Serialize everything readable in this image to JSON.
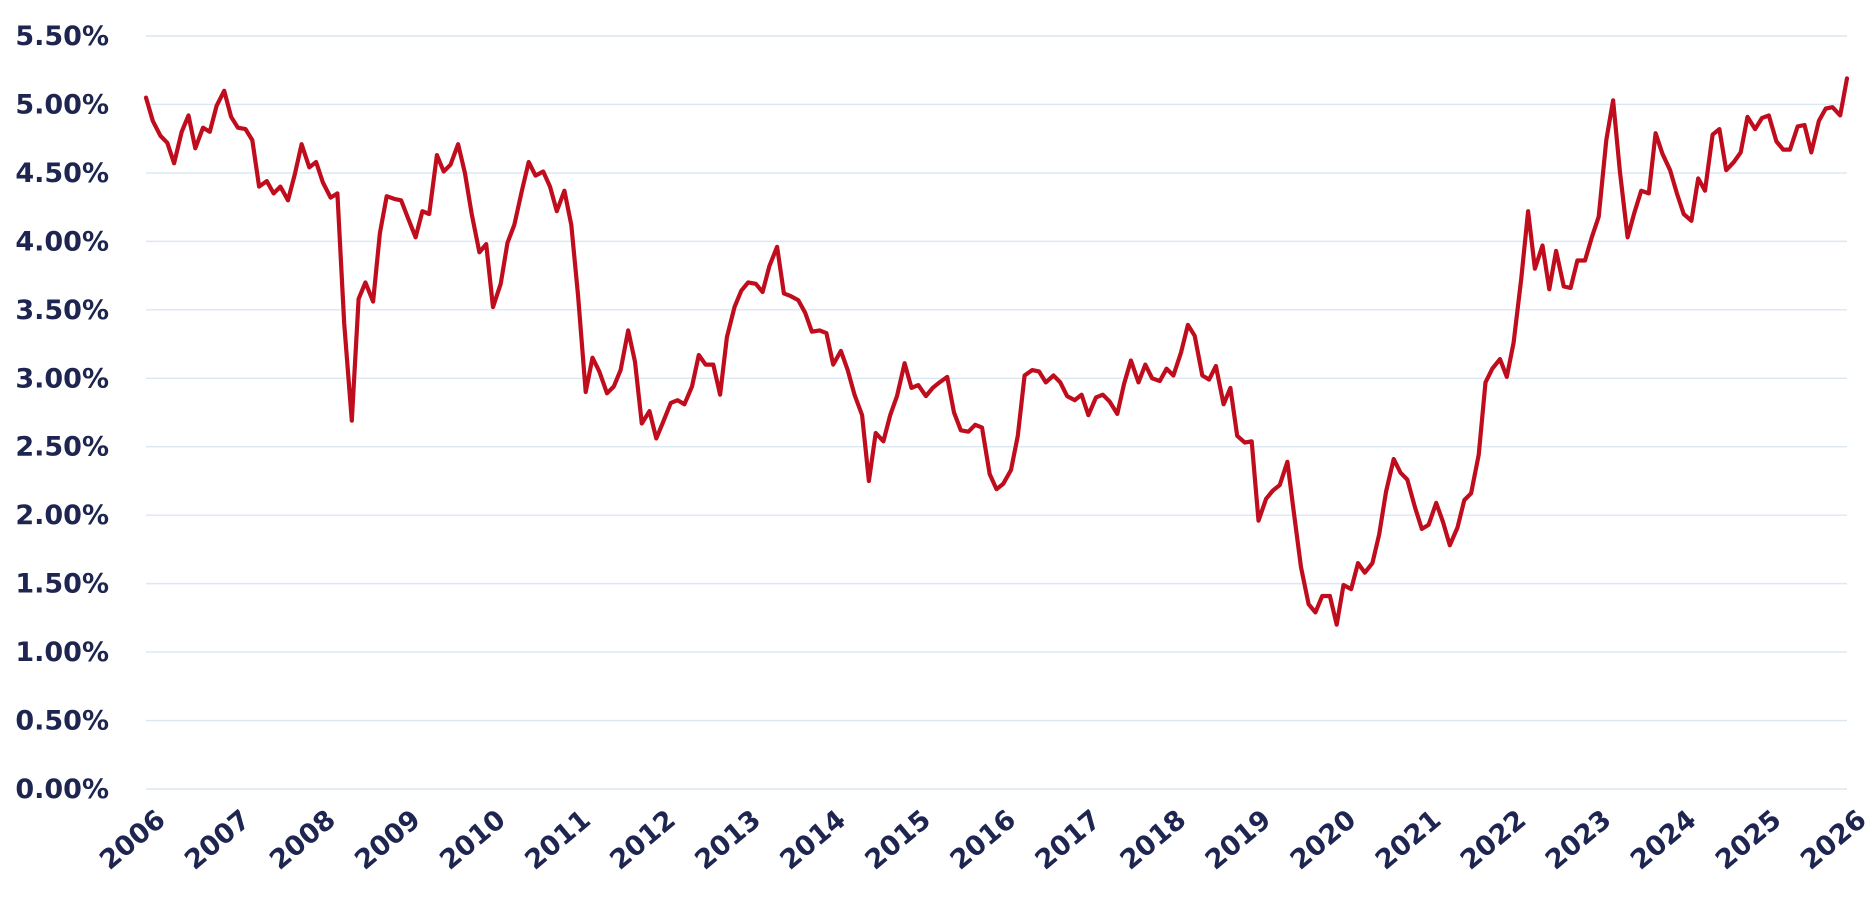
{
  "chart_data": {
    "type": "line",
    "title": "",
    "xlabel": "",
    "ylabel": "",
    "xlim": [
      2006,
      2026
    ],
    "ylim": [
      0,
      5.5
    ],
    "x_ticks": [
      2006,
      2007,
      2008,
      2009,
      2010,
      2011,
      2012,
      2013,
      2014,
      2015,
      2016,
      2017,
      2018,
      2019,
      2020,
      2021,
      2022,
      2023,
      2024,
      2025,
      2026
    ],
    "x_tick_labels": [
      "2006",
      "2007",
      "2008",
      "2009",
      "2010",
      "2011",
      "2012",
      "2013",
      "2014",
      "2015",
      "2016",
      "2017",
      "2018",
      "2019",
      "2020",
      "2021",
      "2022",
      "2023",
      "2024",
      "2025",
      "2026"
    ],
    "y_ticks": [
      0,
      0.5,
      1,
      1.5,
      2,
      2.5,
      3,
      3.5,
      4,
      4.5,
      5,
      5.5
    ],
    "y_tick_labels": [
      "0.00%",
      "0.50%",
      "1.00%",
      "1.50%",
      "2.00%",
      "2.50%",
      "3.00%",
      "3.50%",
      "4.00%",
      "4.50%",
      "5.00%",
      "5.50%"
    ],
    "grid": "horizontal",
    "legend": "none",
    "series": [
      {
        "color": "#c00d1e",
        "points": [
          [
            2006.0,
            5.05
          ],
          [
            2006.08,
            4.88
          ],
          [
            2006.17,
            4.77
          ],
          [
            2006.25,
            4.72
          ],
          [
            2006.33,
            4.57
          ],
          [
            2006.42,
            4.8
          ],
          [
            2006.5,
            4.92
          ],
          [
            2006.58,
            4.68
          ],
          [
            2006.67,
            4.83
          ],
          [
            2006.75,
            4.8
          ],
          [
            2006.83,
            4.99
          ],
          [
            2006.92,
            5.1
          ],
          [
            2007.0,
            4.91
          ],
          [
            2007.08,
            4.83
          ],
          [
            2007.17,
            4.82
          ],
          [
            2007.25,
            4.74
          ],
          [
            2007.33,
            4.4
          ],
          [
            2007.42,
            4.44
          ],
          [
            2007.5,
            4.35
          ],
          [
            2007.58,
            4.4
          ],
          [
            2007.67,
            4.3
          ],
          [
            2007.75,
            4.49
          ],
          [
            2007.83,
            4.71
          ],
          [
            2007.92,
            4.54
          ],
          [
            2008.0,
            4.58
          ],
          [
            2008.08,
            4.43
          ],
          [
            2008.17,
            4.32
          ],
          [
            2008.25,
            4.35
          ],
          [
            2008.33,
            3.4
          ],
          [
            2008.42,
            2.69
          ],
          [
            2008.5,
            3.58
          ],
          [
            2008.58,
            3.7
          ],
          [
            2008.67,
            3.56
          ],
          [
            2008.75,
            4.06
          ],
          [
            2008.83,
            4.33
          ],
          [
            2008.92,
            4.31
          ],
          [
            2009.0,
            4.3
          ],
          [
            2009.08,
            4.17
          ],
          [
            2009.17,
            4.03
          ],
          [
            2009.25,
            4.22
          ],
          [
            2009.33,
            4.2
          ],
          [
            2009.42,
            4.63
          ],
          [
            2009.5,
            4.51
          ],
          [
            2009.58,
            4.56
          ],
          [
            2009.67,
            4.71
          ],
          [
            2009.75,
            4.5
          ],
          [
            2009.83,
            4.2
          ],
          [
            2009.92,
            3.92
          ],
          [
            2010.0,
            3.98
          ],
          [
            2010.08,
            3.52
          ],
          [
            2010.17,
            3.69
          ],
          [
            2010.25,
            3.99
          ],
          [
            2010.33,
            4.12
          ],
          [
            2010.42,
            4.37
          ],
          [
            2010.5,
            4.58
          ],
          [
            2010.58,
            4.48
          ],
          [
            2010.67,
            4.51
          ],
          [
            2010.75,
            4.4
          ],
          [
            2010.83,
            4.22
          ],
          [
            2010.92,
            4.37
          ],
          [
            2011.0,
            4.12
          ],
          [
            2011.08,
            3.6
          ],
          [
            2011.17,
            2.9
          ],
          [
            2011.25,
            3.15
          ],
          [
            2011.33,
            3.05
          ],
          [
            2011.42,
            2.89
          ],
          [
            2011.5,
            2.94
          ],
          [
            2011.58,
            3.06
          ],
          [
            2011.67,
            3.35
          ],
          [
            2011.75,
            3.12
          ],
          [
            2011.83,
            2.67
          ],
          [
            2011.92,
            2.76
          ],
          [
            2012.0,
            2.56
          ],
          [
            2012.08,
            2.68
          ],
          [
            2012.17,
            2.82
          ],
          [
            2012.25,
            2.84
          ],
          [
            2012.33,
            2.81
          ],
          [
            2012.42,
            2.94
          ],
          [
            2012.5,
            3.17
          ],
          [
            2012.58,
            3.1
          ],
          [
            2012.67,
            3.1
          ],
          [
            2012.75,
            2.88
          ],
          [
            2012.83,
            3.3
          ],
          [
            2012.92,
            3.52
          ],
          [
            2013.0,
            3.64
          ],
          [
            2013.08,
            3.7
          ],
          [
            2013.17,
            3.69
          ],
          [
            2013.25,
            3.63
          ],
          [
            2013.33,
            3.82
          ],
          [
            2013.42,
            3.96
          ],
          [
            2013.5,
            3.62
          ],
          [
            2013.58,
            3.6
          ],
          [
            2013.67,
            3.57
          ],
          [
            2013.75,
            3.48
          ],
          [
            2013.83,
            3.34
          ],
          [
            2013.92,
            3.35
          ],
          [
            2014.0,
            3.33
          ],
          [
            2014.08,
            3.1
          ],
          [
            2014.17,
            3.2
          ],
          [
            2014.25,
            3.06
          ],
          [
            2014.33,
            2.88
          ],
          [
            2014.42,
            2.73
          ],
          [
            2014.5,
            2.25
          ],
          [
            2014.58,
            2.6
          ],
          [
            2014.67,
            2.54
          ],
          [
            2014.75,
            2.73
          ],
          [
            2014.83,
            2.87
          ],
          [
            2014.92,
            3.11
          ],
          [
            2015.0,
            2.93
          ],
          [
            2015.08,
            2.95
          ],
          [
            2015.17,
            2.87
          ],
          [
            2015.25,
            2.93
          ],
          [
            2015.33,
            2.97
          ],
          [
            2015.42,
            3.01
          ],
          [
            2015.5,
            2.75
          ],
          [
            2015.58,
            2.62
          ],
          [
            2015.67,
            2.61
          ],
          [
            2015.75,
            2.66
          ],
          [
            2015.83,
            2.64
          ],
          [
            2015.92,
            2.3
          ],
          [
            2016.0,
            2.19
          ],
          [
            2016.08,
            2.23
          ],
          [
            2016.17,
            2.33
          ],
          [
            2016.25,
            2.58
          ],
          [
            2016.33,
            3.02
          ],
          [
            2016.42,
            3.06
          ],
          [
            2016.5,
            3.05
          ],
          [
            2016.58,
            2.97
          ],
          [
            2016.67,
            3.02
          ],
          [
            2016.75,
            2.97
          ],
          [
            2016.83,
            2.87
          ],
          [
            2016.92,
            2.84
          ],
          [
            2017.0,
            2.88
          ],
          [
            2017.08,
            2.73
          ],
          [
            2017.17,
            2.86
          ],
          [
            2017.25,
            2.88
          ],
          [
            2017.33,
            2.83
          ],
          [
            2017.42,
            2.74
          ],
          [
            2017.5,
            2.96
          ],
          [
            2017.58,
            3.13
          ],
          [
            2017.67,
            2.97
          ],
          [
            2017.75,
            3.1
          ],
          [
            2017.83,
            3.0
          ],
          [
            2017.92,
            2.98
          ],
          [
            2018.0,
            3.07
          ],
          [
            2018.08,
            3.02
          ],
          [
            2018.17,
            3.19
          ],
          [
            2018.25,
            3.39
          ],
          [
            2018.33,
            3.31
          ],
          [
            2018.42,
            3.02
          ],
          [
            2018.5,
            2.99
          ],
          [
            2018.58,
            3.09
          ],
          [
            2018.67,
            2.81
          ],
          [
            2018.75,
            2.93
          ],
          [
            2018.83,
            2.58
          ],
          [
            2018.92,
            2.53
          ],
          [
            2019.0,
            2.54
          ],
          [
            2019.08,
            1.96
          ],
          [
            2019.17,
            2.12
          ],
          [
            2019.25,
            2.18
          ],
          [
            2019.33,
            2.22
          ],
          [
            2019.42,
            2.39
          ],
          [
            2019.5,
            2.0
          ],
          [
            2019.58,
            1.62
          ],
          [
            2019.67,
            1.35
          ],
          [
            2019.75,
            1.29
          ],
          [
            2019.83,
            1.41
          ],
          [
            2019.92,
            1.41
          ],
          [
            2020.0,
            1.2
          ],
          [
            2020.08,
            1.49
          ],
          [
            2020.17,
            1.46
          ],
          [
            2020.25,
            1.65
          ],
          [
            2020.33,
            1.58
          ],
          [
            2020.42,
            1.65
          ],
          [
            2020.5,
            1.86
          ],
          [
            2020.58,
            2.17
          ],
          [
            2020.67,
            2.41
          ],
          [
            2020.75,
            2.31
          ],
          [
            2020.83,
            2.26
          ],
          [
            2020.92,
            2.06
          ],
          [
            2021.0,
            1.9
          ],
          [
            2021.08,
            1.93
          ],
          [
            2021.17,
            2.09
          ],
          [
            2021.25,
            1.95
          ],
          [
            2021.33,
            1.78
          ],
          [
            2021.42,
            1.91
          ],
          [
            2021.5,
            2.11
          ],
          [
            2021.58,
            2.16
          ],
          [
            2021.67,
            2.44
          ],
          [
            2021.75,
            2.97
          ],
          [
            2021.83,
            3.07
          ],
          [
            2021.92,
            3.14
          ],
          [
            2022.0,
            3.01
          ],
          [
            2022.08,
            3.26
          ],
          [
            2022.17,
            3.73
          ],
          [
            2022.25,
            4.22
          ],
          [
            2022.33,
            3.8
          ],
          [
            2022.42,
            3.97
          ],
          [
            2022.5,
            3.65
          ],
          [
            2022.58,
            3.93
          ],
          [
            2022.67,
            3.67
          ],
          [
            2022.75,
            3.66
          ],
          [
            2022.83,
            3.86
          ],
          [
            2022.92,
            3.86
          ],
          [
            2023.0,
            4.03
          ],
          [
            2023.08,
            4.18
          ],
          [
            2023.17,
            4.74
          ],
          [
            2023.25,
            5.03
          ],
          [
            2023.33,
            4.51
          ],
          [
            2023.42,
            4.03
          ],
          [
            2023.5,
            4.21
          ],
          [
            2023.58,
            4.37
          ],
          [
            2023.67,
            4.35
          ],
          [
            2023.75,
            4.79
          ],
          [
            2023.83,
            4.64
          ],
          [
            2023.92,
            4.52
          ],
          [
            2024.0,
            4.35
          ],
          [
            2024.08,
            4.2
          ],
          [
            2024.17,
            4.15
          ],
          [
            2024.25,
            4.46
          ],
          [
            2024.33,
            4.37
          ],
          [
            2024.42,
            4.78
          ],
          [
            2024.5,
            4.82
          ],
          [
            2024.58,
            4.52
          ],
          [
            2024.67,
            4.58
          ],
          [
            2024.75,
            4.65
          ],
          [
            2024.83,
            4.91
          ],
          [
            2024.92,
            4.82
          ],
          [
            2025.0,
            4.9
          ],
          [
            2025.08,
            4.92
          ],
          [
            2025.17,
            4.73
          ],
          [
            2025.25,
            4.67
          ],
          [
            2025.33,
            4.67
          ],
          [
            2025.42,
            4.84
          ],
          [
            2025.5,
            4.85
          ],
          [
            2025.58,
            4.65
          ],
          [
            2025.67,
            4.88
          ],
          [
            2025.75,
            4.97
          ],
          [
            2025.83,
            4.98
          ],
          [
            2025.92,
            4.92
          ],
          [
            2026.0,
            5.19
          ]
        ]
      }
    ]
  }
}
